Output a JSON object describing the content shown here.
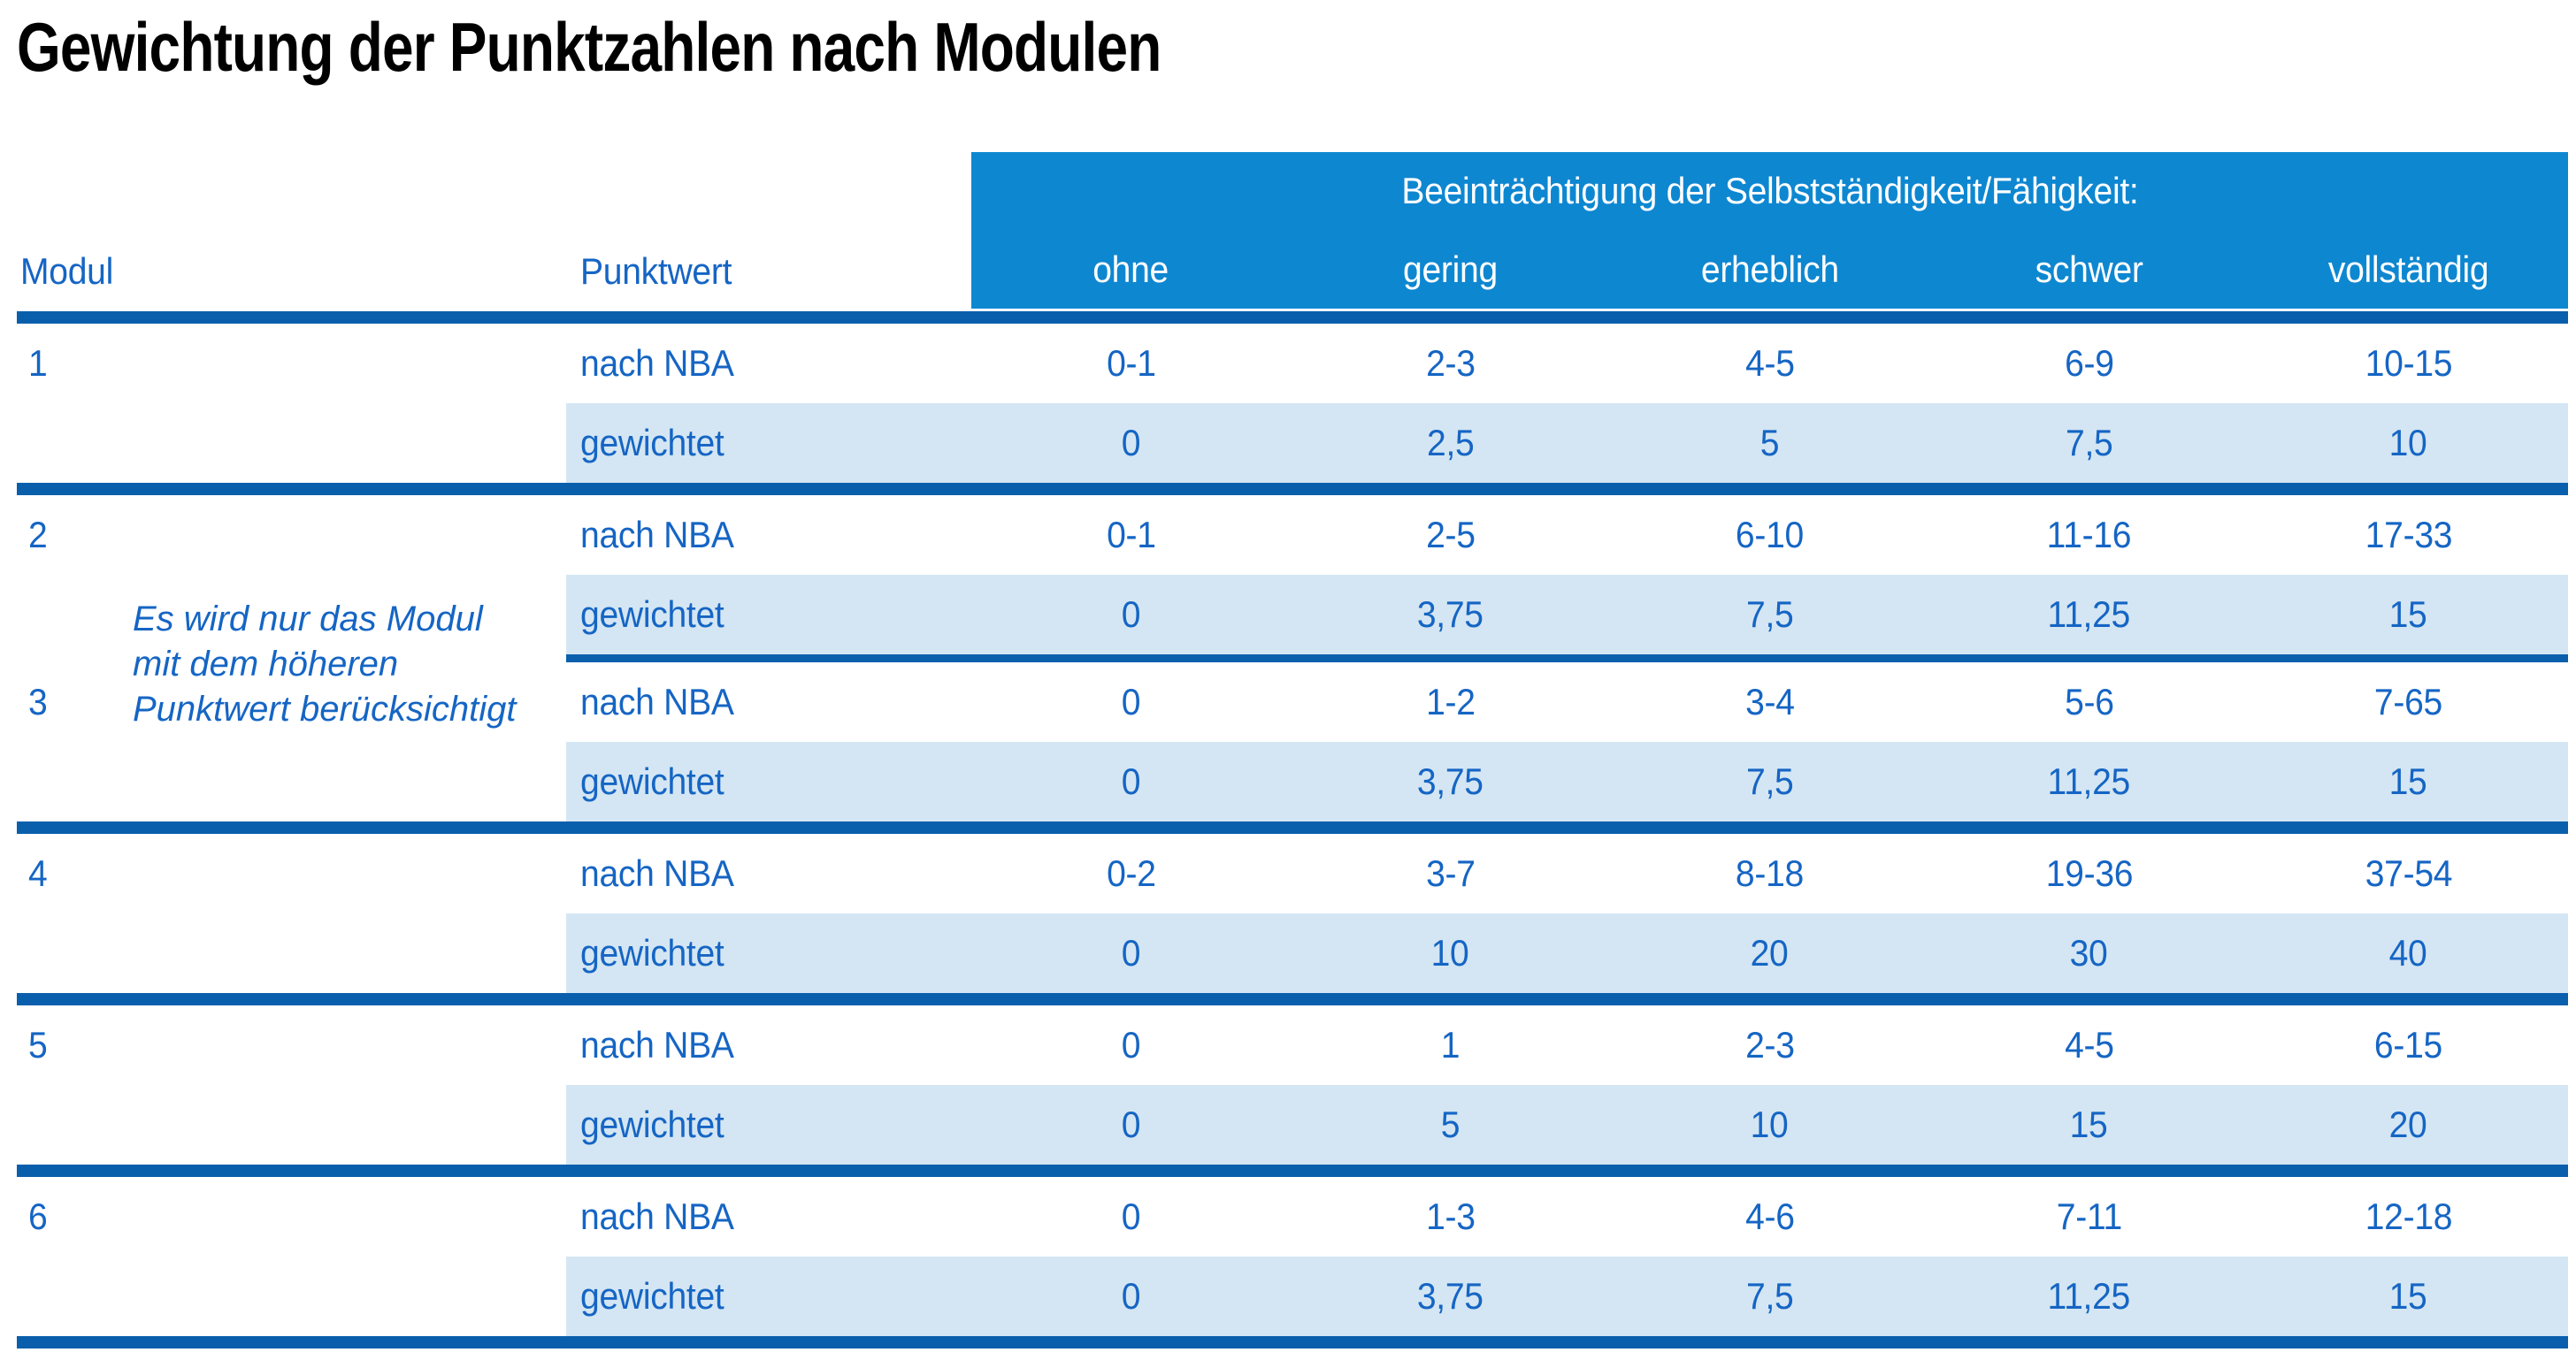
{
  "title": "Gewichtung der Punktzahlen nach Modulen",
  "colors": {
    "band": "#0e87d1",
    "line": "#0a5fad",
    "row_shade": "#d4e6f3",
    "text_blue": "#1565c4"
  },
  "header": {
    "modul": "Modul",
    "punktwert": "Punktwert",
    "group_label": "Beeinträchtigung der Selbstständigkeit/Fähigkeit:",
    "severity_levels": [
      "ohne",
      "gering",
      "erheblich",
      "schwer",
      "vollständig"
    ]
  },
  "row_labels": {
    "nach_nba": "nach NBA",
    "gewichtet": "gewichtet"
  },
  "note": {
    "lines": [
      "Es wird nur das Modul",
      "mit dem höheren",
      "Punktwert berücksichtigt"
    ]
  },
  "modules": [
    {
      "number": "1",
      "nach_nba": [
        "0-1",
        "2-3",
        "4-5",
        "6-9",
        "10-15"
      ],
      "gewichtet": [
        "0",
        "2,5",
        "5",
        "7,5",
        "10"
      ]
    },
    {
      "number": "2",
      "nach_nba": [
        "0-1",
        "2-5",
        "6-10",
        "11-16",
        "17-33"
      ],
      "gewichtet": [
        "0",
        "3,75",
        "7,5",
        "11,25",
        "15"
      ]
    },
    {
      "number": "3",
      "nach_nba": [
        "0",
        "1-2",
        "3-4",
        "5-6",
        "7-65"
      ],
      "gewichtet": [
        "0",
        "3,75",
        "7,5",
        "11,25",
        "15"
      ]
    },
    {
      "number": "4",
      "nach_nba": [
        "0-2",
        "3-7",
        "8-18",
        "19-36",
        "37-54"
      ],
      "gewichtet": [
        "0",
        "10",
        "20",
        "30",
        "40"
      ]
    },
    {
      "number": "5",
      "nach_nba": [
        "0",
        "1",
        "2-3",
        "4-5",
        "6-15"
      ],
      "gewichtet": [
        "0",
        "5",
        "10",
        "15",
        "20"
      ]
    },
    {
      "number": "6",
      "nach_nba": [
        "0",
        "1-3",
        "4-6",
        "7-11",
        "12-18"
      ],
      "gewichtet": [
        "0",
        "3,75",
        "7,5",
        "11,25",
        "15"
      ]
    }
  ]
}
